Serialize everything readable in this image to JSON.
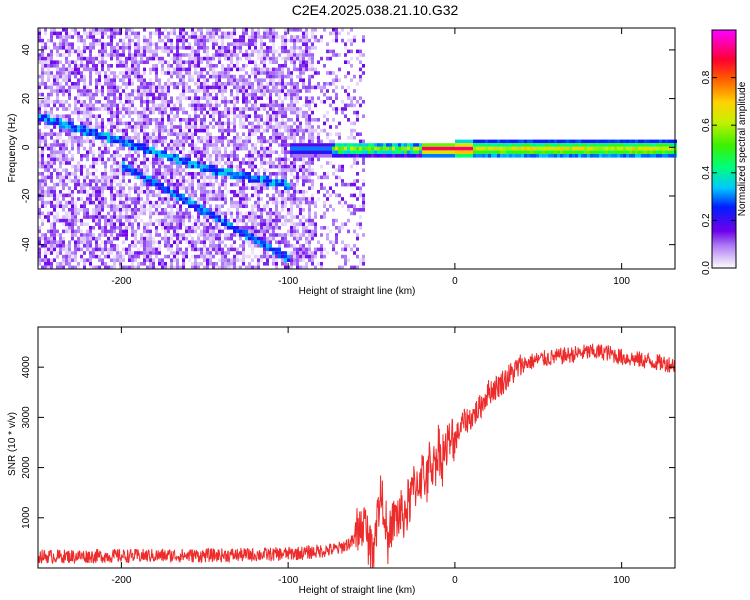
{
  "figure_title": "C2E4.2025.038.21.10.G32",
  "colors": {
    "snr_line": "#ee2b2b",
    "axes": "#000000",
    "background": "#ffffff"
  },
  "chart_data": [
    {
      "type": "heatmap",
      "title": "",
      "xlabel": "Height of straight line (km)",
      "ylabel": "Frequency (Hz)",
      "xlim": [
        -250,
        132
      ],
      "ylim": [
        -50,
        49
      ],
      "xticks": [
        -200,
        -100,
        0,
        100
      ],
      "yticks": [
        -40,
        -20,
        0,
        20,
        40
      ],
      "colormap": "rainbow (white to purple to blue to cyan to green to yellow to red to magenta)",
      "colorbar": {
        "label": "Normalized spectral amplitude",
        "range": [
          0.0,
          1.0
        ],
        "ticks": [
          0.0,
          0.2,
          0.4,
          0.6,
          0.8
        ]
      },
      "features": [
        {
          "name": "central carrier band",
          "x_range": [
            -100,
            132
          ],
          "freq_hz": 0,
          "peak_amplitude": 1.0
        },
        {
          "name": "descending trace 1",
          "points": [
            [
              -250,
              13
            ],
            [
              -200,
              3
            ],
            [
              -150,
              -8
            ],
            [
              -100,
              -15
            ]
          ]
        },
        {
          "name": "descending trace 2",
          "points": [
            [
              -200,
              -7
            ],
            [
              -170,
              -18
            ],
            [
              -140,
              -30
            ],
            [
              -100,
              -45
            ]
          ]
        },
        {
          "name": "noise region",
          "x_range": [
            -250,
            -55
          ]
        }
      ]
    },
    {
      "type": "line",
      "title": "",
      "xlabel": "Height of straight line (km)",
      "ylabel": "SNR (10 * v/v)",
      "xlim": [
        -250,
        132
      ],
      "ylim": [
        0,
        4800
      ],
      "xticks": [
        -200,
        -100,
        0,
        100
      ],
      "yticks": [
        1000,
        2000,
        3000,
        4000
      ],
      "series": [
        {
          "x": [
            -250,
            -200,
            -150,
            -110,
            -90,
            -70,
            -60,
            -55,
            -52,
            -50,
            -47,
            -45,
            -42,
            -40,
            -38,
            -35,
            -30,
            -27,
            -25,
            -22,
            -20,
            -17,
            -15,
            -12,
            -10,
            -8,
            -5,
            0,
            5,
            10,
            15,
            20,
            25,
            30,
            35,
            40,
            50,
            60,
            70,
            80,
            90,
            100,
            110,
            120,
            132
          ],
          "y": [
            230,
            240,
            250,
            270,
            300,
            380,
            550,
            900,
            600,
            350,
            900,
            1400,
            1250,
            200,
            900,
            1000,
            1100,
            1350,
            1600,
            1700,
            1900,
            1750,
            2050,
            2100,
            2350,
            2200,
            2400,
            2550,
            2900,
            3000,
            3200,
            3500,
            3600,
            3750,
            3900,
            4050,
            4150,
            4200,
            4250,
            4300,
            4300,
            4200,
            4150,
            4100,
            4050
          ]
        }
      ]
    }
  ]
}
